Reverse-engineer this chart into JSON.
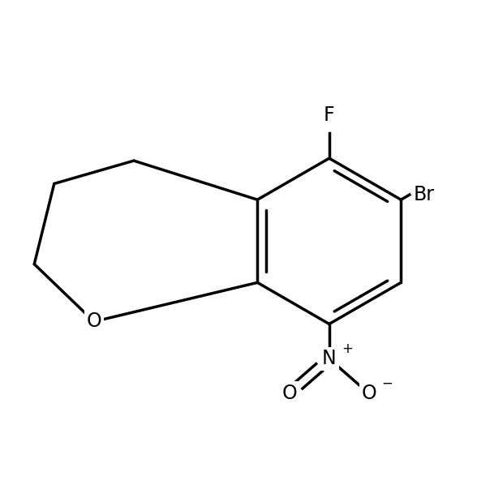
{
  "background_color": "#ffffff",
  "line_color": "#000000",
  "line_width": 2.5,
  "label_F": "F",
  "label_Br": "Br",
  "label_O_ring": "O",
  "label_N": "N",
  "label_plus": "+",
  "label_O_double": "O",
  "label_O_minus": "O",
  "label_minus": "−",
  "figsize": [
    5.88,
    6.14
  ],
  "dpi": 100,
  "font_size": 17
}
